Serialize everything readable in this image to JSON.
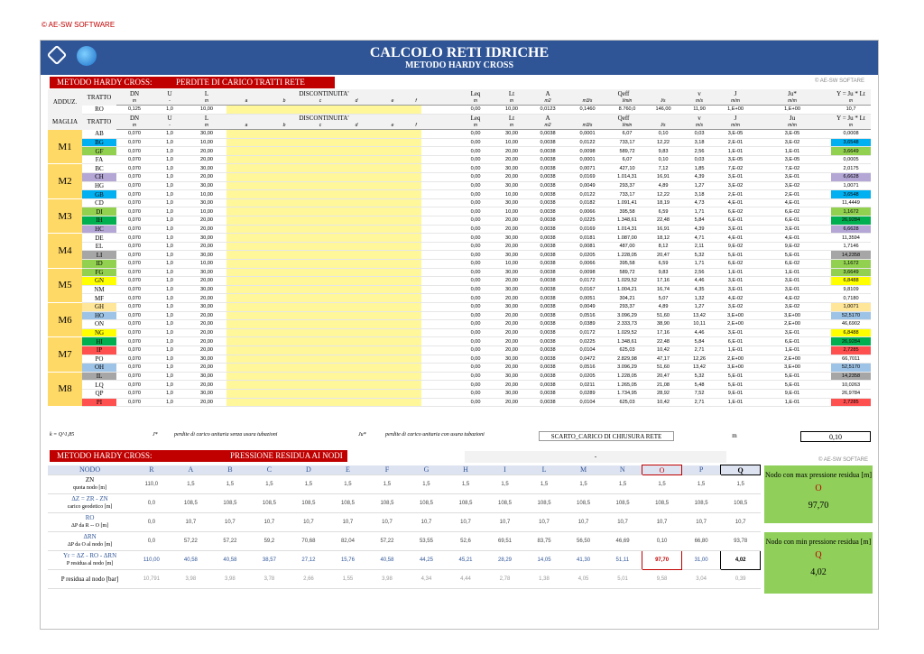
{
  "copyright": "© AE-SW SOFTWARE",
  "title": "CALCOLO RETI IDRICHE",
  "subtitle": "METODO HARDY CROSS",
  "software_label": "© AE-SW SOFTARE",
  "sec1": {
    "left": "METODO HARDY CROSS:",
    "right": "PERDITE DI CARICO TRATTI RETE"
  },
  "sec2": {
    "left": "METODO HARDY CROSS:",
    "right": "PRESSIONE RESIDUA AI NODI"
  },
  "adduz_label": "ADDUZ.",
  "maglia_label": "MAGLIA",
  "headers": [
    "TRATTO",
    "DN",
    "U",
    "L",
    "DISCONTINUITA'",
    "Leq",
    "Lt",
    "A",
    "Qeff",
    "v",
    "J",
    "Ju*",
    "Y = Ju * Lt"
  ],
  "headers_m": [
    "TRATTO",
    "DN",
    "U",
    "L",
    "DISCONTINUITA'",
    "Leq",
    "Lt",
    "A",
    "Qeff",
    "v",
    "J",
    "Ju",
    "Y = Ju * Lt"
  ],
  "units": [
    "",
    "m",
    "-",
    "m",
    "a",
    "b",
    "c",
    "d",
    "e",
    "f",
    "m",
    "m",
    "m2",
    "m3/s",
    "l/min",
    "l/s",
    "m/s",
    "m/m",
    "m/m",
    "m"
  ],
  "adduz_row": [
    "RO",
    "0,125",
    "1,0",
    "10,00",
    "0,00",
    "10,00",
    "0,0123",
    "0,1460",
    "8.760,0",
    "146,00",
    "11,90",
    "1,E+00",
    "1,E+00",
    "10,7"
  ],
  "groups": [
    {
      "name": "M1",
      "rows": [
        [
          "AB",
          "0,070",
          "1,0",
          "30,00",
          "0,00",
          "30,00",
          "0,0038",
          "0,0001",
          "6,07",
          "0,10",
          "0,03",
          "3,E-05",
          "3,E-05",
          "0,0008",
          ""
        ],
        [
          "BG",
          "0,070",
          "1,0",
          "10,00",
          "0,00",
          "10,00",
          "0,0038",
          "0,0122",
          "733,17",
          "12,22",
          "3,18",
          "2,E-01",
          "3,E-02",
          "3,6548",
          "#00b0f0"
        ],
        [
          "GF",
          "0,070",
          "1,0",
          "20,00",
          "0,00",
          "20,00",
          "0,0038",
          "0,0098",
          "589,72",
          "9,83",
          "2,56",
          "1,E-01",
          "1,E-01",
          "3,6649",
          "#92d050"
        ],
        [
          "FA",
          "0,070",
          "1,0",
          "20,00",
          "0,00",
          "20,00",
          "0,0038",
          "0,0001",
          "6,07",
          "0,10",
          "0,03",
          "3,E-05",
          "3,E-05",
          "0,0005",
          ""
        ]
      ]
    },
    {
      "name": "M2",
      "rows": [
        [
          "BC",
          "0,070",
          "1,0",
          "30,00",
          "0,00",
          "30,00",
          "0,0038",
          "0,0071",
          "427,10",
          "7,12",
          "1,85",
          "7,E-02",
          "7,E-02",
          "2,0175",
          ""
        ],
        [
          "CH",
          "0,070",
          "1,0",
          "20,00",
          "0,00",
          "20,00",
          "0,0038",
          "0,0169",
          "1.014,31",
          "16,91",
          "4,39",
          "3,E-01",
          "3,E-01",
          "6,6628",
          "#b4a7d6"
        ],
        [
          "HG",
          "0,070",
          "1,0",
          "30,00",
          "0,00",
          "30,00",
          "0,0038",
          "0,0049",
          "293,37",
          "4,89",
          "1,27",
          "3,E-02",
          "3,E-02",
          "1,0071",
          ""
        ],
        [
          "GB",
          "0,070",
          "1,0",
          "10,00",
          "0,00",
          "10,00",
          "0,0038",
          "0,0122",
          "733,17",
          "12,22",
          "3,18",
          "2,E-01",
          "2,E-01",
          "3,6548",
          "#00b0f0"
        ]
      ]
    },
    {
      "name": "M3",
      "rows": [
        [
          "CD",
          "0,070",
          "1,0",
          "30,00",
          "0,00",
          "30,00",
          "0,0038",
          "0,0182",
          "1.091,41",
          "18,19",
          "4,73",
          "4,E-01",
          "4,E-01",
          "11,4449",
          ""
        ],
        [
          "DI",
          "0,070",
          "1,0",
          "10,00",
          "0,00",
          "10,00",
          "0,0038",
          "0,0066",
          "395,58",
          "6,59",
          "1,71",
          "6,E-02",
          "6,E-02",
          "1,1672",
          "#92d050"
        ],
        [
          "IH",
          "0,070",
          "1,0",
          "20,00",
          "0,00",
          "20,00",
          "0,0038",
          "0,0225",
          "1.348,61",
          "22,48",
          "5,84",
          "6,E-01",
          "6,E-01",
          "26,9284",
          "#00b050"
        ],
        [
          "HC",
          "0,070",
          "1,0",
          "20,00",
          "0,00",
          "20,00",
          "0,0038",
          "0,0169",
          "1.014,31",
          "16,91",
          "4,39",
          "3,E-01",
          "3,E-01",
          "6,6628",
          "#b4a7d6"
        ]
      ]
    },
    {
      "name": "M4",
      "rows": [
        [
          "DE",
          "0,070",
          "1,0",
          "30,00",
          "0,00",
          "30,00",
          "0,0038",
          "0,0181",
          "1.087,00",
          "18,12",
          "4,71",
          "4,E-01",
          "4,E-01",
          "11,3594",
          ""
        ],
        [
          "EL",
          "0,070",
          "1,0",
          "20,00",
          "0,00",
          "20,00",
          "0,0038",
          "0,0081",
          "487,00",
          "8,12",
          "2,11",
          "9,E-02",
          "9,E-02",
          "1,7146",
          ""
        ],
        [
          "LI",
          "0,070",
          "1,0",
          "30,00",
          "0,00",
          "30,00",
          "0,0038",
          "0,0205",
          "1.228,05",
          "20,47",
          "5,32",
          "5,E-01",
          "5,E-01",
          "14,2358",
          "#a6a6a6"
        ],
        [
          "ID",
          "0,070",
          "1,0",
          "10,00",
          "0,00",
          "10,00",
          "0,0038",
          "0,0066",
          "395,58",
          "6,59",
          "1,71",
          "6,E-02",
          "6,E-02",
          "1,1672",
          "#92d050"
        ]
      ]
    },
    {
      "name": "M5",
      "rows": [
        [
          "FG",
          "0,070",
          "1,0",
          "30,00",
          "0,00",
          "30,00",
          "0,0038",
          "0,0098",
          "589,72",
          "9,83",
          "2,56",
          "1,E-01",
          "1,E-01",
          "3,6649",
          "#92d050"
        ],
        [
          "GN",
          "0,070",
          "1,0",
          "20,00",
          "0,00",
          "20,00",
          "0,0038",
          "0,0172",
          "1.029,52",
          "17,16",
          "4,46",
          "3,E-01",
          "3,E-01",
          "6,8488",
          "#ffff00"
        ],
        [
          "NM",
          "0,070",
          "1,0",
          "30,00",
          "0,00",
          "30,00",
          "0,0038",
          "0,0167",
          "1.004,21",
          "16,74",
          "4,35",
          "3,E-01",
          "3,E-01",
          "9,8109",
          ""
        ],
        [
          "MF",
          "0,070",
          "1,0",
          "20,00",
          "0,00",
          "20,00",
          "0,0038",
          "0,0051",
          "304,21",
          "5,07",
          "1,32",
          "4,E-02",
          "4,E-02",
          "0,7180",
          ""
        ]
      ]
    },
    {
      "name": "M6",
      "rows": [
        [
          "GH",
          "0,070",
          "1,0",
          "30,00",
          "0,00",
          "30,00",
          "0,0038",
          "0,0049",
          "293,37",
          "4,89",
          "1,27",
          "3,E-02",
          "3,E-02",
          "1,0071",
          "#ffe699"
        ],
        [
          "HO",
          "0,070",
          "1,0",
          "20,00",
          "0,00",
          "20,00",
          "0,0038",
          "0,0516",
          "3.096,29",
          "51,60",
          "13,42",
          "3,E+00",
          "3,E+00",
          "52,5170",
          "#9dc3e6"
        ],
        [
          "ON",
          "0,070",
          "1,0",
          "20,00",
          "0,00",
          "20,00",
          "0,0038",
          "0,0389",
          "2.333,73",
          "38,90",
          "10,11",
          "2,E+00",
          "2,E+00",
          "46,6902",
          ""
        ],
        [
          "NG",
          "0,070",
          "1,0",
          "20,00",
          "0,00",
          "20,00",
          "0,0038",
          "0,0172",
          "1.029,52",
          "17,16",
          "4,46",
          "3,E-01",
          "3,E-01",
          "6,8488",
          "#ffff00"
        ]
      ]
    },
    {
      "name": "M7",
      "rows": [
        [
          "HI",
          "0,070",
          "1,0",
          "20,00",
          "0,00",
          "20,00",
          "0,0038",
          "0,0225",
          "1.348,61",
          "22,48",
          "5,84",
          "6,E-01",
          "6,E-01",
          "26,9284",
          "#00b050"
        ],
        [
          "IP",
          "0,070",
          "1,0",
          "20,00",
          "0,00",
          "20,00",
          "0,0038",
          "0,0104",
          "625,03",
          "10,42",
          "2,71",
          "1,E-01",
          "1,E-01",
          "2,7285",
          "#ff5050"
        ],
        [
          "PO",
          "0,070",
          "1,0",
          "30,00",
          "0,00",
          "30,00",
          "0,0038",
          "0,0472",
          "2.829,98",
          "47,17",
          "12,26",
          "2,E+00",
          "2,E+00",
          "66,7011",
          ""
        ],
        [
          "OH",
          "0,070",
          "1,0",
          "20,00",
          "0,00",
          "20,00",
          "0,0038",
          "0,0516",
          "3.096,29",
          "51,60",
          "13,42",
          "3,E+00",
          "3,E+00",
          "52,5170",
          "#9dc3e6"
        ]
      ]
    },
    {
      "name": "M8",
      "rows": [
        [
          "IL",
          "0,070",
          "1,0",
          "30,00",
          "0,00",
          "30,00",
          "0,0038",
          "0,0205",
          "1.228,05",
          "20,47",
          "5,32",
          "5,E-01",
          "5,E-01",
          "14,2358",
          "#a6a6a6"
        ],
        [
          "LQ",
          "0,070",
          "1,0",
          "20,00",
          "0,00",
          "20,00",
          "0,0038",
          "0,0211",
          "1.265,05",
          "21,08",
          "5,48",
          "5,E-01",
          "5,E-01",
          "10,0263",
          ""
        ],
        [
          "QP",
          "0,070",
          "1,0",
          "30,00",
          "0,00",
          "30,00",
          "0,0038",
          "0,0289",
          "1.734,95",
          "28,92",
          "7,52",
          "9,E-01",
          "9,E-01",
          "26,9784",
          ""
        ],
        [
          "PI",
          "0,070",
          "1,0",
          "20,00",
          "0,00",
          "20,00",
          "0,0038",
          "0,0104",
          "625,03",
          "10,42",
          "2,71",
          "1,E-01",
          "1,E-01",
          "2,7285",
          "#ff5050"
        ]
      ]
    }
  ],
  "footer": {
    "k": "k = Q^1,85",
    "jstar": "J*",
    "jstar_desc": "perdite di carico unitaria senza usura tubazioni",
    "justar": "Ju*",
    "justar_desc": "perdite di carico unitaria con usura tubazioni",
    "scarto": "SCARTO_CARICO DI CHIUSURA RETE",
    "unit": "m",
    "value": "0,10"
  },
  "pressure": {
    "bar_text": "-",
    "nodes": [
      "R",
      "A",
      "B",
      "C",
      "D",
      "E",
      "F",
      "G",
      "H",
      "I",
      "L",
      "M",
      "N",
      "O",
      "P",
      "Q"
    ],
    "node_label": "NODO",
    "rows": [
      {
        "l1": "ZN",
        "l2": "quota nodo [m]",
        "vals": [
          "110,0",
          "1,5",
          "1,5",
          "1,5",
          "1,5",
          "1,5",
          "1,5",
          "1,5",
          "1,5",
          "1,5",
          "1,5",
          "1,5",
          "1,5",
          "1,5",
          "1,5",
          "1,5"
        ]
      },
      {
        "l1": "ΔZ = ZR - ZN",
        "l2": "carico geodetico [m]",
        "vals": [
          "0,0",
          "108,5",
          "108,5",
          "108,5",
          "108,5",
          "108,5",
          "108,5",
          "108,5",
          "108,5",
          "108,5",
          "108,5",
          "108,5",
          "108,5",
          "108,5",
          "108,5",
          "108,5"
        ]
      },
      {
        "l1": "RO",
        "l2": "ΔP da R -- O [m]",
        "vals": [
          "0,0",
          "10,7",
          "10,7",
          "10,7",
          "10,7",
          "10,7",
          "10,7",
          "10,7",
          "10,7",
          "10,7",
          "10,7",
          "10,7",
          "10,7",
          "10,7",
          "10,7",
          "10,7"
        ]
      },
      {
        "l1": "ΔRN",
        "l2": "ΔP da O al nodo [m]",
        "vals": [
          "0,0",
          "57,22",
          "57,22",
          "59,2",
          "70,68",
          "82,04",
          "57,22",
          "53,55",
          "52,6",
          "69,51",
          "83,75",
          "56,50",
          "46,69",
          "0,10",
          "66,80",
          "93,78"
        ]
      },
      {
        "l1": "Yr = ΔZ - RO - ΔRN",
        "l2": "P residua al nodo [m]",
        "vals": [
          "110,00",
          "40,58",
          "40,58",
          "38,57",
          "27,12",
          "15,76",
          "40,58",
          "44,25",
          "45,21",
          "28,29",
          "14,05",
          "41,30",
          "51,11",
          "97,70",
          "31,00",
          "4,02"
        ]
      },
      {
        "l1": "P residua al nodo [bar]",
        "l2": "",
        "vals": [
          "10,791",
          "3,98",
          "3,98",
          "3,78",
          "2,66",
          "1,55",
          "3,98",
          "4,34",
          "4,44",
          "2,78",
          "1,38",
          "4,05",
          "5,01",
          "9,58",
          "3,04",
          "0,39"
        ]
      }
    ]
  },
  "max_box": {
    "title": "Nodo con max pressione residua [m]",
    "node": "O",
    "value": "97,70"
  },
  "min_box": {
    "title": "Nodo con min pressione residua [m]",
    "node": "Q",
    "value": "4,02"
  }
}
